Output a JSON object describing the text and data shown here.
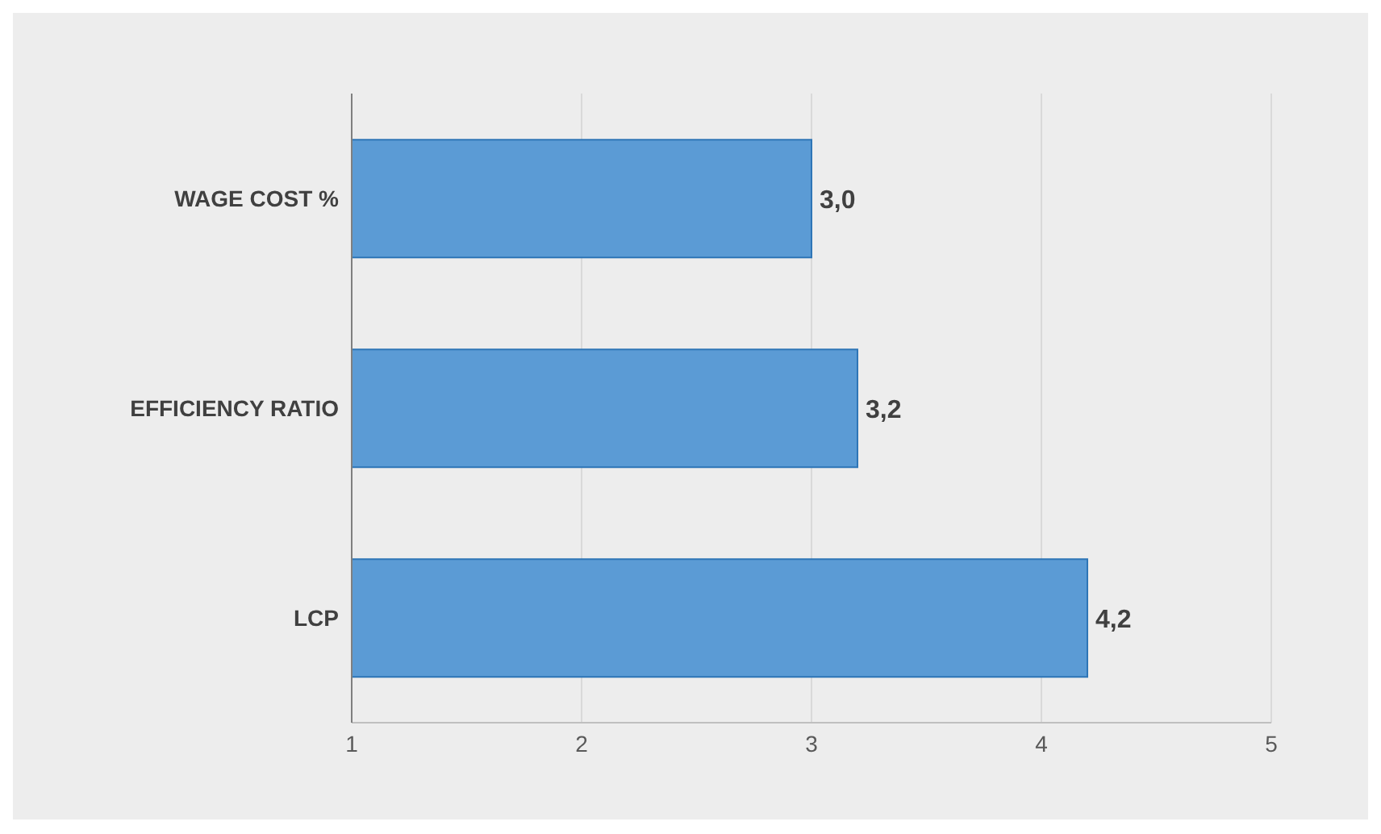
{
  "chart_data": {
    "type": "bar",
    "orientation": "horizontal",
    "categories": [
      "WAGE COST %",
      "EFFICIENCY RATIO",
      "LCP"
    ],
    "values": [
      3.0,
      3.2,
      4.2
    ],
    "value_labels": [
      "3,0",
      "3,2",
      "4,2"
    ],
    "color": "#5b9bd5",
    "xlim": [
      1,
      5
    ],
    "xticks": [
      1,
      2,
      3,
      4,
      5
    ],
    "grid": "x"
  }
}
